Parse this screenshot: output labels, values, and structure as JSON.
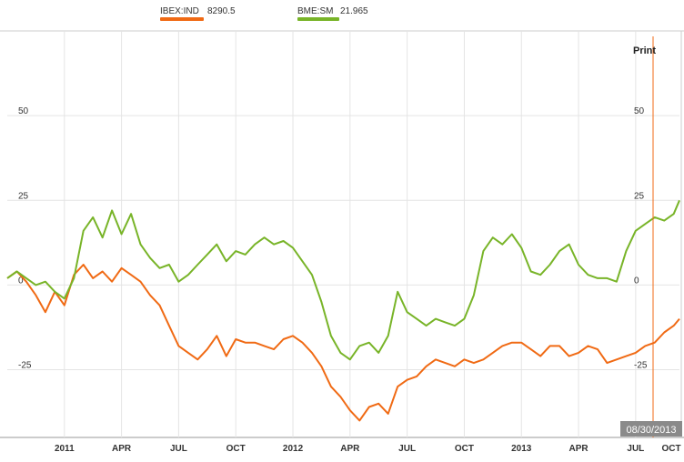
{
  "legend": {
    "items": [
      {
        "label": "IBEX:IND",
        "value": "8290.5",
        "color": "#f06a14"
      },
      {
        "label": "BME:SM",
        "value": "21.965",
        "color": "#78b428"
      }
    ]
  },
  "toolbar": {
    "print_label": "Print"
  },
  "crosshair": {
    "date_label": "08/30/2013",
    "color": "#f06a14"
  },
  "chart_data": {
    "type": "line",
    "x_ticks": [
      "2011",
      "APR",
      "JUL",
      "OCT",
      "2012",
      "APR",
      "JUL",
      "OCT",
      "2013",
      "APR",
      "JUL",
      "OCT"
    ],
    "y_ticks": [
      50,
      25,
      0,
      -25
    ],
    "ylim": [
      -45,
      75
    ],
    "xlim": [
      0,
      35.3
    ],
    "grid": true,
    "series": [
      {
        "name": "IBEX:IND",
        "color": "#f06a14",
        "x": [
          0,
          0.5,
          1,
          1.5,
          2,
          2.5,
          3,
          3.5,
          4,
          4.5,
          5,
          5.5,
          6,
          6.5,
          7,
          7.5,
          8,
          8.5,
          9,
          9.5,
          10,
          10.5,
          11,
          11.5,
          12,
          12.5,
          13,
          13.5,
          14,
          14.5,
          15,
          15.5,
          16,
          16.5,
          17,
          17.5,
          18,
          18.5,
          19,
          19.5,
          20,
          20.5,
          21,
          21.5,
          22,
          22.5,
          23,
          23.5,
          24,
          24.5,
          25,
          25.5,
          26,
          26.5,
          27,
          27.5,
          28,
          28.5,
          29,
          29.5,
          30,
          30.5,
          31,
          31.5,
          32,
          32.5,
          33,
          33.5,
          34,
          34.5,
          35,
          35.3
        ],
        "values": [
          2,
          4,
          1,
          -3,
          -8,
          -2,
          -6,
          3,
          6,
          2,
          4,
          1,
          5,
          3,
          1,
          -3,
          -6,
          -12,
          -18,
          -20,
          -22,
          -19,
          -15,
          -21,
          -16,
          -17,
          -17,
          -18,
          -19,
          -16,
          -15,
          -17,
          -20,
          -24,
          -30,
          -33,
          -37,
          -40,
          -36,
          -35,
          -38,
          -30,
          -28,
          -27,
          -24,
          -22,
          -23,
          -24,
          -22,
          -23,
          -22,
          -20,
          -18,
          -17,
          -17,
          -19,
          -21,
          -18,
          -18,
          -21,
          -20,
          -18,
          -19,
          -23,
          -22,
          -21,
          -20,
          -18,
          -17,
          -14,
          -12,
          -10
        ]
      },
      {
        "name": "BME:SM",
        "color": "#78b428",
        "x": [
          0,
          0.5,
          1,
          1.5,
          2,
          2.5,
          3,
          3.5,
          4,
          4.5,
          5,
          5.5,
          6,
          6.5,
          7,
          7.5,
          8,
          8.5,
          9,
          9.5,
          10,
          10.5,
          11,
          11.5,
          12,
          12.5,
          13,
          13.5,
          14,
          14.5,
          15,
          15.5,
          16,
          16.5,
          17,
          17.5,
          18,
          18.5,
          19,
          19.5,
          20,
          20.5,
          21,
          21.5,
          22,
          22.5,
          23,
          23.5,
          24,
          24.5,
          25,
          25.5,
          26,
          26.5,
          27,
          27.5,
          28,
          28.5,
          29,
          29.5,
          30,
          30.5,
          31,
          31.5,
          32,
          32.5,
          33,
          33.5,
          34,
          34.5,
          35,
          35.3
        ],
        "values": [
          2,
          4,
          2,
          0,
          1,
          -2,
          -4,
          2,
          16,
          20,
          14,
          22,
          15,
          21,
          12,
          8,
          5,
          6,
          1,
          3,
          6,
          9,
          12,
          7,
          10,
          9,
          12,
          14,
          12,
          13,
          11,
          7,
          3,
          -5,
          -15,
          -20,
          -22,
          -18,
          -17,
          -20,
          -15,
          -2,
          -8,
          -10,
          -12,
          -10,
          -11,
          -12,
          -10,
          -3,
          10,
          14,
          12,
          15,
          11,
          4,
          3,
          6,
          10,
          12,
          6,
          3,
          2,
          2,
          1,
          10,
          16,
          18,
          20,
          19,
          21,
          25
        ]
      }
    ]
  }
}
